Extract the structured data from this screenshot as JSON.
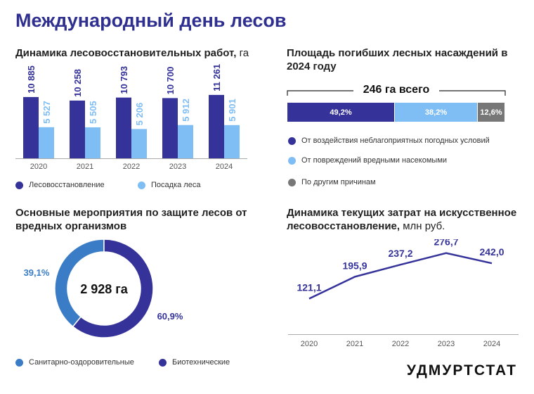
{
  "title": "Международный день лесов",
  "brand": "УДМУРТСТАТ",
  "colors": {
    "dark": "#35339a",
    "light": "#7fbef5",
    "grey": "#777777",
    "mid": "#3a7cc6",
    "line": "#35339a"
  },
  "chart_data": [
    {
      "type": "bar",
      "title": "Динамика лесовосстановительных работ,",
      "title_unit": "га",
      "categories": [
        "2020",
        "2021",
        "2022",
        "2023",
        "2024"
      ],
      "series": [
        {
          "name": "Лесовосстановление",
          "values": [
            10885,
            10258,
            10793,
            10700,
            11261
          ],
          "labels": [
            "10 885",
            "10 258",
            "10 793",
            "10 700",
            "11 261"
          ]
        },
        {
          "name": "Посадка леса",
          "values": [
            5527,
            5505,
            5206,
            5912,
            5901
          ],
          "labels": [
            "5 527",
            "5 505",
            "5 206",
            "5 912",
            "5 901"
          ]
        }
      ],
      "ylim": [
        0,
        16000
      ],
      "legend": "bottom"
    },
    {
      "type": "bar",
      "orientation": "stacked-horizontal",
      "title": "Площадь погибших лесных насаждений в 2024 году",
      "total_label": "246 га всего",
      "series": [
        {
          "name": "От воздействия неблагоприятных погодных условий",
          "value": 49.2,
          "label": "49,2%"
        },
        {
          "name": "От повреждений вредными насекомыми",
          "value": 38.2,
          "label": "38,2%"
        },
        {
          "name": "По другим причинам",
          "value": 12.6,
          "label": "12,6%"
        }
      ],
      "legend": "bottom"
    },
    {
      "type": "pie",
      "donut": true,
      "title": "Основные мероприятия по защите лесов от вредных организмов",
      "center_label": "2 928 га",
      "slices": [
        {
          "name": "Санитарно-оздоровительные",
          "value": 39.1,
          "label": "39,1%"
        },
        {
          "name": "Биотехнические",
          "value": 60.9,
          "label": "60,9%"
        }
      ],
      "legend": "bottom"
    },
    {
      "type": "line",
      "title": "Динамика текущих затрат на искусственное лесовосстановление,",
      "title_unit": "млн руб.",
      "x": [
        "2020",
        "2021",
        "2022",
        "2023",
        "2024"
      ],
      "values": [
        121.1,
        195.9,
        237.2,
        276.7,
        242.0
      ],
      "labels": [
        "121,1",
        "195,9",
        "237,2",
        "276,7",
        "242,0"
      ],
      "ylim": [
        60,
        300
      ]
    }
  ]
}
